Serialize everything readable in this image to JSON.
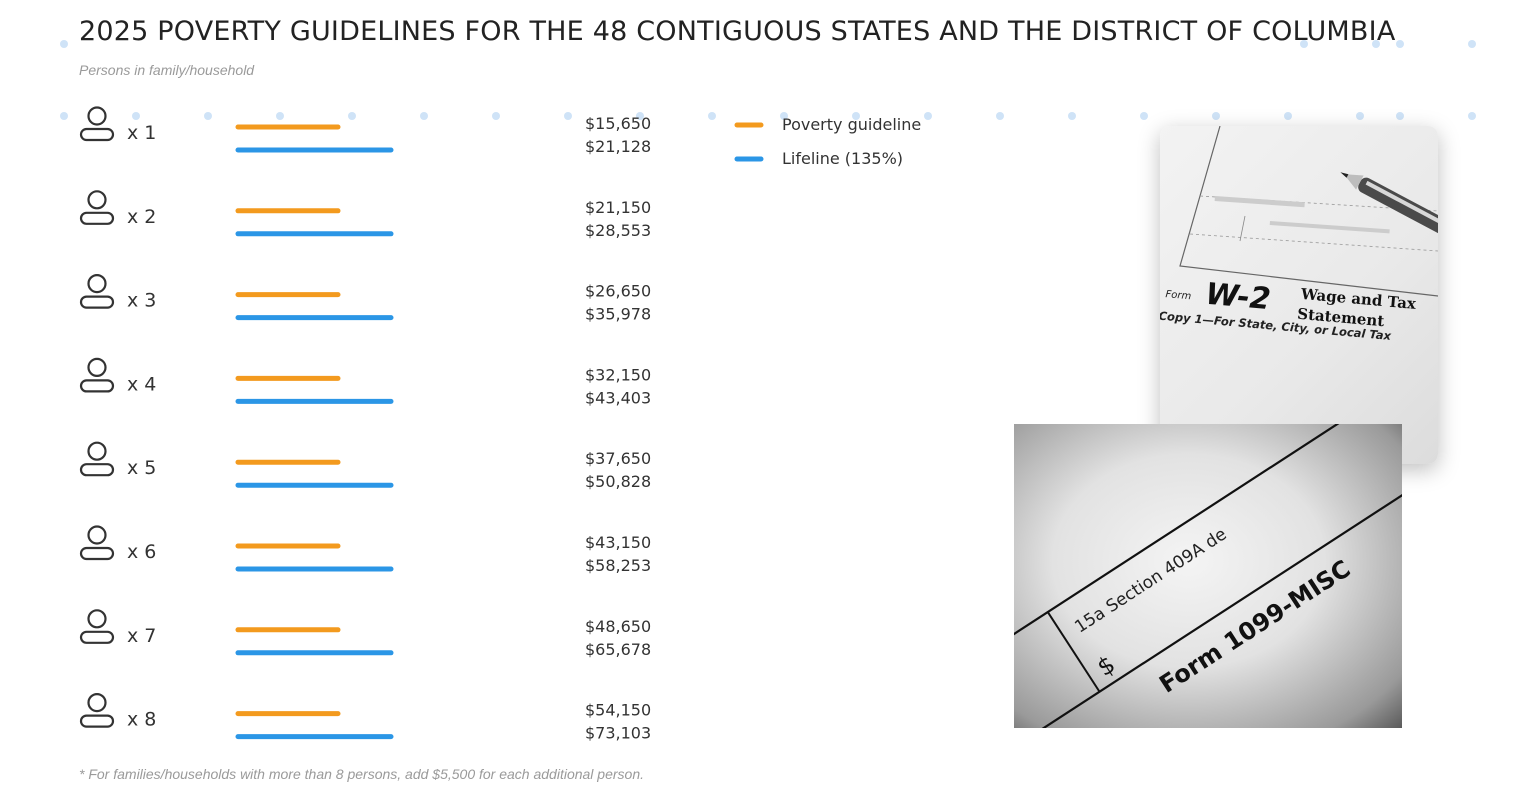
{
  "title": "2025 POVERTY GUIDELINES FOR THE 48 CONTIGUOUS STATES AND THE DISTRICT OF COLUMBIA",
  "subtitle": "Persons in family/household",
  "footnote": "* For families/households with more than 8 persons, add $5,500 for each additional person.",
  "colors": {
    "poverty": "#f39a1e",
    "lifeline": "#2b96e6",
    "dots": "#cfe3f7",
    "icon": "#333333"
  },
  "icon": "person-icon",
  "chart_data": {
    "type": "bar",
    "orientation": "horizontal",
    "categories": [
      "x 1",
      "x 2",
      "x 3",
      "x 4",
      "x 5",
      "x 6",
      "x 7",
      "x 8"
    ],
    "series": [
      {
        "name": "Poverty guideline",
        "values": [
          15650,
          21150,
          26650,
          32150,
          37650,
          43150,
          48650,
          54150
        ],
        "labels": [
          "$15,650",
          "$21,150",
          "$26,650",
          "$32,150",
          "$37,650",
          "$43,150",
          "$48,650",
          "$54,150"
        ]
      },
      {
        "name": "Lifeline (135%)",
        "values": [
          21128,
          28553,
          35978,
          43403,
          50828,
          58253,
          65678,
          73103
        ],
        "labels": [
          "$21,128",
          "$28,553",
          "$35,978",
          "$43,403",
          "$50,828",
          "$58,253",
          "$65,678",
          "$73,103"
        ]
      }
    ],
    "legend_position": "right",
    "grid": false
  },
  "photos": {
    "w2": {
      "form_prefix": "Form",
      "form_name": "W-2",
      "title_line1": "Wage and Tax",
      "title_line2": "Statement",
      "copy_line": "Copy 1—For State, City, or Local Tax"
    },
    "misc": {
      "box_label": "15a Section 409A de",
      "dollar": "$",
      "form_line": "Form 1099-MISC"
    }
  }
}
